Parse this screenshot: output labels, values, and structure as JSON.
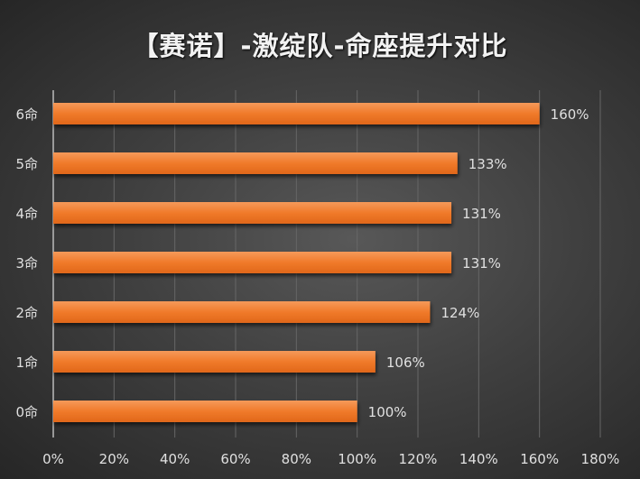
{
  "chart_data": {
    "type": "bar",
    "orientation": "horizontal",
    "title": "【赛诺】-激绽队-命座提升对比",
    "categories": [
      "6命",
      "5命",
      "4命",
      "3命",
      "2命",
      "1命",
      "0命"
    ],
    "values": [
      160,
      133,
      131,
      131,
      124,
      106,
      100
    ],
    "data_labels": [
      "160%",
      "133%",
      "131%",
      "131%",
      "124%",
      "106%",
      "100%"
    ],
    "xlabel": "",
    "ylabel": "",
    "xlim": [
      0,
      180
    ],
    "x_ticks": [
      0,
      20,
      40,
      60,
      80,
      100,
      120,
      140,
      160,
      180
    ],
    "x_tick_labels": [
      "0%",
      "20%",
      "40%",
      "60%",
      "80%",
      "100%",
      "120%",
      "140%",
      "160%",
      "180%"
    ],
    "grid": true,
    "legend": "none",
    "colors": {
      "bar": "#f07a2a",
      "bar_light": "#f59a5a",
      "text": "#e0e0e0",
      "grid": "#666666"
    }
  }
}
